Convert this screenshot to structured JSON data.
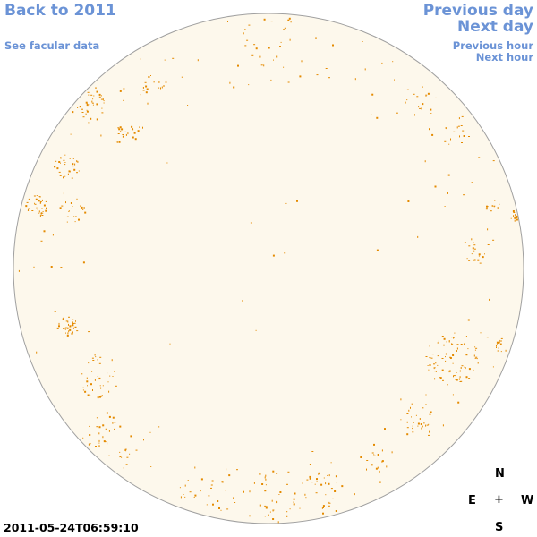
{
  "nav": {
    "back": "Back to 2011",
    "facular": "See facular data",
    "prev_day": "Previous day",
    "next_day": "Next day",
    "prev_hour": "Previous hour",
    "next_hour": "Next hour"
  },
  "compass": {
    "n": "N",
    "e": "E",
    "w": "W",
    "s": "S",
    "center": "+"
  },
  "timestamp": "2011-05-24T06:59:10",
  "colors": {
    "disk_fill": "#fdf8ec",
    "disk_stroke": "#a0a0a0",
    "spot": "#e48a00",
    "link": "#6b93d6"
  }
}
